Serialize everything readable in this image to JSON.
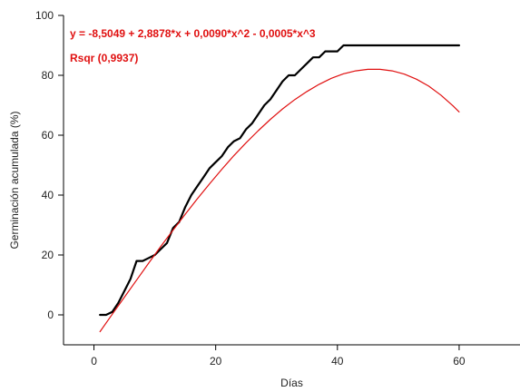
{
  "chart_data": {
    "type": "line",
    "xlabel": "Días",
    "ylabel": "Germinación acumulada (%)",
    "xlim": [
      -5,
      70
    ],
    "ylim": [
      -10,
      100
    ],
    "xticks": [
      0,
      20,
      40,
      60
    ],
    "yticks": [
      0,
      20,
      40,
      60,
      80,
      100
    ],
    "grid": false,
    "annotations": [
      {
        "text": "y = -8,5049 + 2,8878*x + 0,0090*x^2 - 0,0005*x^3",
        "color": "#e01010"
      },
      {
        "text": "Rsqr (0,9937)",
        "color": "#e01010"
      }
    ],
    "series": [
      {
        "color": "#000000",
        "x": [
          1,
          2,
          3,
          4,
          5,
          6,
          7,
          8,
          9,
          10,
          11,
          12,
          13,
          14,
          15,
          16,
          17,
          18,
          19,
          20,
          21,
          22,
          23,
          24,
          25,
          26,
          27,
          28,
          29,
          30,
          31,
          32,
          33,
          34,
          35,
          36,
          37,
          38,
          39,
          40,
          41,
          42,
          60
        ],
        "y": [
          0,
          0,
          1,
          4,
          8,
          12,
          18,
          18,
          19,
          20,
          22,
          24,
          29,
          31,
          36,
          40,
          43,
          46,
          49,
          51,
          53,
          56,
          58,
          59,
          62,
          64,
          67,
          70,
          72,
          75,
          78,
          80,
          80,
          82,
          84,
          86,
          86,
          88,
          88,
          88,
          90,
          90,
          90
        ]
      },
      {
        "color": "#e01010",
        "x": [
          1,
          3,
          5,
          7,
          9,
          11,
          13,
          15,
          17,
          19,
          21,
          23,
          25,
          27,
          29,
          31,
          33,
          35,
          37,
          39,
          41,
          43,
          45,
          47,
          49,
          51,
          53,
          55,
          57,
          59,
          60
        ],
        "y": [
          -5.6,
          0.2,
          5.9,
          11.6,
          17.3,
          22.9,
          28.3,
          33.6,
          38.8,
          43.8,
          48.6,
          53.2,
          57.5,
          61.5,
          65.3,
          68.8,
          71.9,
          74.6,
          77.0,
          79.0,
          80.5,
          81.5,
          82.0,
          82.0,
          81.5,
          80.4,
          78.7,
          76.4,
          73.4,
          69.8,
          67.8
        ]
      }
    ]
  }
}
